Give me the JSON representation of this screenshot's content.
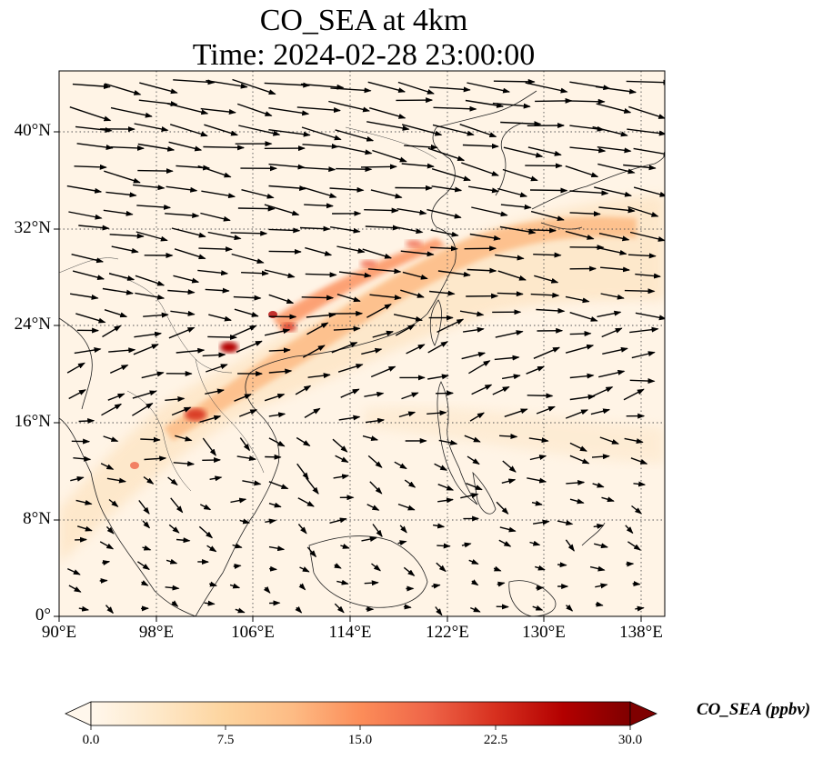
{
  "title_line1": "CO_SEA at 4km",
  "title_line2": "Time: 2024-02-28 23:00:00",
  "map": {
    "projection": "PlateCarree",
    "lon_range": [
      90,
      140
    ],
    "lat_range": [
      0,
      45
    ],
    "gridlines": "dotted",
    "lat_ticks": [
      "0°",
      "8°N",
      "16°N",
      "24°N",
      "32°N",
      "40°N"
    ],
    "lon_ticks": [
      "90°E",
      "98°E",
      "106°E",
      "114°E",
      "122°E",
      "130°E",
      "138°E"
    ],
    "field": "CO_SEA",
    "field_description": "CO concentration shading with wind vectors at 4 km",
    "high_concentration_band": "southwest-to-northeast plume from northern Myanmar/Laos through southern China to Korea and Japan",
    "wind_overlay": "westerly wind vectors, strongest north of 24°N"
  },
  "colorbar": {
    "label": "CO_SEA (ppbv)",
    "colormap": "OrRd",
    "range": [
      0.0,
      30.0
    ],
    "ticks": [
      "0.0",
      "7.5",
      "15.0",
      "22.5",
      "30.0"
    ],
    "extend": "both",
    "colors": [
      "#fff7ec",
      "#fee8c8",
      "#fdd49e",
      "#fdbb84",
      "#fc8d59",
      "#ef6548",
      "#d7301f",
      "#b30000",
      "#7f0000"
    ]
  }
}
